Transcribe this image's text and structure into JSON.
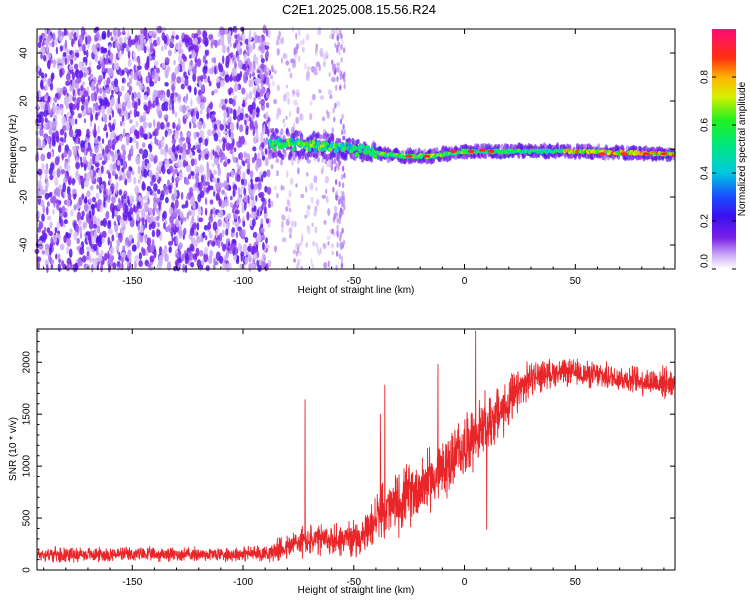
{
  "figure": {
    "title": "C2E1.2025.008.15.56.R24"
  },
  "chart_data": [
    {
      "type": "heatmap",
      "title": "",
      "xlabel": "Height of straight line (km)",
      "ylabel": "Frequency (Hz)",
      "xlim": [
        -193,
        95
      ],
      "ylim": [
        -50,
        50
      ],
      "xticks": [
        -150,
        -100,
        -50,
        0,
        50
      ],
      "yticks": [
        -40,
        -20,
        0,
        20,
        40
      ],
      "colorbar": {
        "label": "Normalized spectral amplitude",
        "range": [
          0,
          1
        ],
        "ticks": [
          0.0,
          0.2,
          0.4,
          0.6,
          0.8
        ],
        "colormap": "rainbow (purple-blue-cyan-green-yellow-red-magenta)"
      },
      "regions": [
        {
          "name": "broadband noise",
          "x_range": [
            -193,
            -88
          ],
          "freq_range": [
            -50,
            50
          ],
          "amplitude": "low (purple)"
        },
        {
          "name": "sparse noise",
          "x_range": [
            -88,
            -55
          ],
          "freq_range": [
            -50,
            50
          ],
          "amplitude": "very low"
        },
        {
          "name": "signal trace",
          "x_range": [
            -88,
            95
          ],
          "center_freq_hz": [
            {
              "x": -85,
              "f": 2
            },
            {
              "x": -60,
              "f": 1
            },
            {
              "x": -30,
              "f": -3
            },
            {
              "x": -15,
              "f": -3
            },
            {
              "x": 0,
              "f": -1
            },
            {
              "x": 20,
              "f": -1
            },
            {
              "x": 50,
              "f": -1
            },
            {
              "x": 90,
              "f": -2
            }
          ],
          "amplitude": "high (green-yellow-red)"
        }
      ]
    },
    {
      "type": "line",
      "title": "",
      "xlabel": "Height of straight line (km)",
      "ylabel": "SNR (10 * v/v)",
      "xlim": [
        -193,
        95
      ],
      "ylim": [
        0,
        2320
      ],
      "xticks": [
        -150,
        -100,
        -50,
        0,
        50
      ],
      "yticks": [
        0,
        500,
        1000,
        1500,
        2000
      ],
      "series": [
        {
          "name": "SNR",
          "color": "#e8262a",
          "envelope": {
            "x": [
              -193,
              -120,
              -90,
              -80,
              -75,
              -60,
              -45,
              -40,
              -30,
              -20,
              -10,
              0,
              10,
              20,
              30,
              40,
              50,
              60,
              70,
              80,
              95
            ],
            "mean": [
              150,
              150,
              160,
              220,
              270,
              290,
              320,
              500,
              650,
              800,
              950,
              1200,
              1400,
              1600,
              1850,
              1900,
              1900,
              1870,
              1850,
              1820,
              1800
            ],
            "spread": [
              80,
              80,
              90,
              150,
              180,
              190,
              200,
              300,
              350,
              350,
              350,
              350,
              350,
              300,
              200,
              150,
              150,
              150,
              150,
              160,
              180
            ]
          },
          "spikes": [
            {
              "x": -72,
              "y": 1640
            },
            {
              "x": -38,
              "y": 1500
            },
            {
              "x": -36,
              "y": 1780
            },
            {
              "x": -12,
              "y": 1980
            },
            {
              "x": 3,
              "y": 1500
            },
            {
              "x": 5,
              "y": 2300
            },
            {
              "x": 10,
              "y": 2300
            },
            {
              "x": 10,
              "y": 390
            }
          ]
        }
      ]
    }
  ]
}
